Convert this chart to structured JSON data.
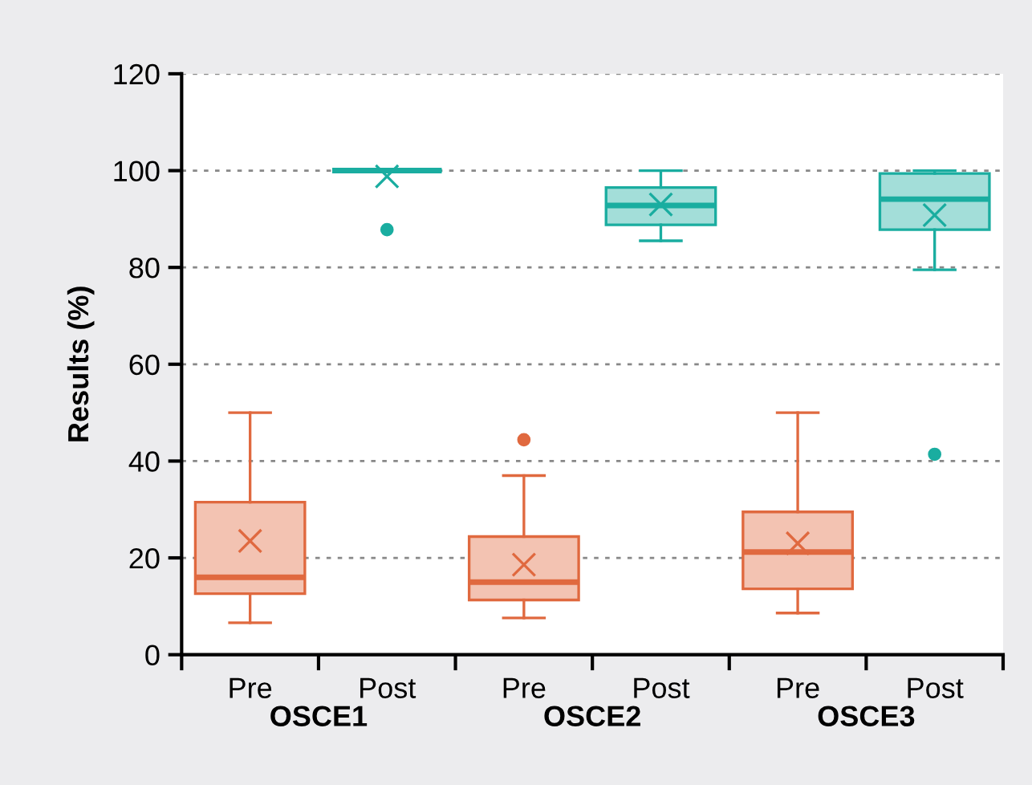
{
  "chart_data": {
    "type": "box",
    "ylabel": "Results (%)",
    "categories": [
      "Pre",
      "Post",
      "Pre",
      "Post",
      "Pre",
      "Post"
    ],
    "annotations": [
      "OSCE1",
      "OSCE2",
      "OSCE3"
    ],
    "series": [
      {
        "color": "#e0693f",
        "boxes": [
          {
            "low": 6.6,
            "q1": 12.6,
            "median": 16,
            "q3": 31.5,
            "high": 50,
            "mean": 23.5
          },
          null,
          {
            "low": 7.6,
            "q1": 11.3,
            "median": 15,
            "q3": 24.4,
            "high": 37,
            "mean": 18.6,
            "outliers": [
              44.4
            ]
          },
          null,
          {
            "low": 8.6,
            "q1": 13.6,
            "median": 21.2,
            "q3": 29.5,
            "high": 50,
            "mean": 23
          },
          null
        ]
      },
      {
        "color": "#1aada0",
        "boxes": [
          null,
          {
            "low": 100,
            "q1": 100,
            "median": 100,
            "q3": 100,
            "high": 100,
            "mean": 98.8,
            "outliers": [
              87.8
            ]
          },
          null,
          {
            "low": 85.5,
            "q1": 88.8,
            "median": 92.8,
            "q3": 96.5,
            "high": 100,
            "mean": 93
          },
          null,
          {
            "low": 79.5,
            "q1": 87.8,
            "median": 94.1,
            "q3": 99.4,
            "high": 100,
            "mean": 90.8,
            "outliers": [
              41.4
            ]
          }
        ]
      }
    ],
    "ylim": [
      0,
      120
    ],
    "yticks": [
      0,
      20,
      40,
      60,
      80,
      100,
      120
    ],
    "grid": "y",
    "marker": "cross"
  }
}
